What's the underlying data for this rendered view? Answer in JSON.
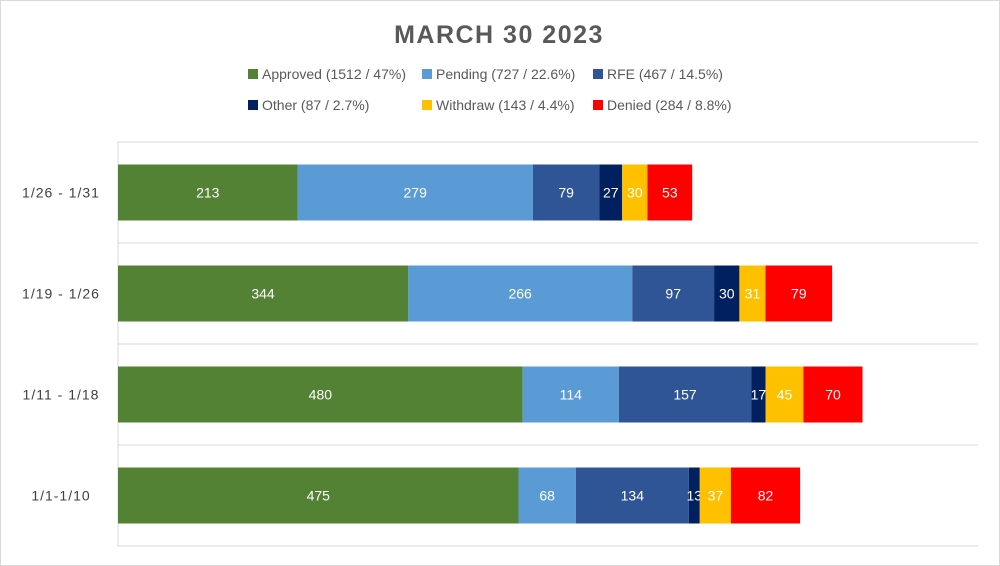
{
  "chart_data": {
    "type": "bar",
    "orientation": "horizontal",
    "stacked": true,
    "title": "MARCH 30 2023",
    "categories": [
      "1/1-1/10",
      "1/11 - 1/18",
      "1/19 - 1/26",
      "1/26 - 1/31"
    ],
    "series": [
      {
        "name": "Approved",
        "legend_label": "Approved (1512 / 47%)",
        "color": "#548235",
        "values": [
          475,
          480,
          344,
          213
        ]
      },
      {
        "name": "Pending",
        "legend_label": "Pending (727 / 22.6%)",
        "color": "#5b9bd5",
        "values": [
          68,
          114,
          266,
          279
        ]
      },
      {
        "name": "RFE",
        "legend_label": "RFE (467 / 14.5%)",
        "color": "#2f5597",
        "values": [
          134,
          157,
          97,
          79
        ]
      },
      {
        "name": "Other",
        "legend_label": "Other (87 / 2.7%)",
        "color": "#002060",
        "values": [
          13,
          17,
          30,
          27
        ]
      },
      {
        "name": "Withdraw",
        "legend_label": "Withdraw (143 / 4.4%)",
        "color": "#ffc000",
        "values": [
          37,
          45,
          31,
          30
        ]
      },
      {
        "name": "Denied",
        "legend_label": "Denied (284 / 8.8%)",
        "color": "#ff0000",
        "values": [
          82,
          70,
          79,
          53
        ]
      }
    ],
    "xlim": [
      0,
      1020
    ],
    "legend_position": "top",
    "grid": "horizontal-separators",
    "data_labels": true
  }
}
